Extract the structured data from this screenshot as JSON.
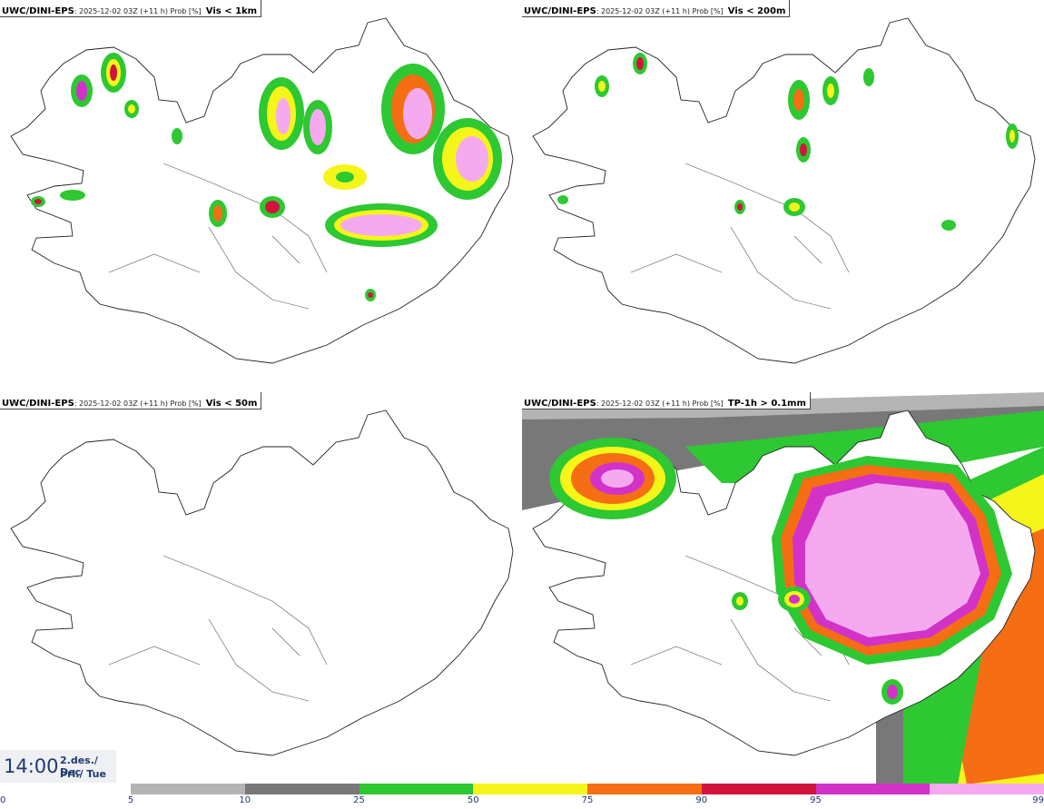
{
  "panels": [
    {
      "model": "UWC/DINI-EPS",
      "run": ": 2025-12-02 03Z (+11 h) Prob [%]",
      "variable": "Vis < 1km"
    },
    {
      "model": "UWC/DINI-EPS",
      "run": ": 2025-12-02 03Z (+11 h) Prob [%]",
      "variable": "Vis < 200m"
    },
    {
      "model": "UWC/DINI-EPS",
      "run": ": 2025-12-02 03Z (+11 h) Prob [%]",
      "variable": "Vis < 50m"
    },
    {
      "model": "UWC/DINI-EPS",
      "run": ": 2025-12-02 03Z (+11 h) Prob [%]",
      "variable": "TP-1h > 0.1mm"
    }
  ],
  "valid_time": {
    "time": "14:00",
    "date_line1": "2.des./ Dec",
    "date_line2": "Þri./ Tue"
  },
  "legend": {
    "ticks": [
      "0",
      "5",
      "10",
      "25",
      "50",
      "75",
      "90",
      "95",
      "99"
    ],
    "colors": [
      "#b4b4b4",
      "#787878",
      "#2dc832",
      "#f5f519",
      "#f56e14",
      "#d2143c",
      "#d232c8",
      "#f5aaf0"
    ]
  }
}
